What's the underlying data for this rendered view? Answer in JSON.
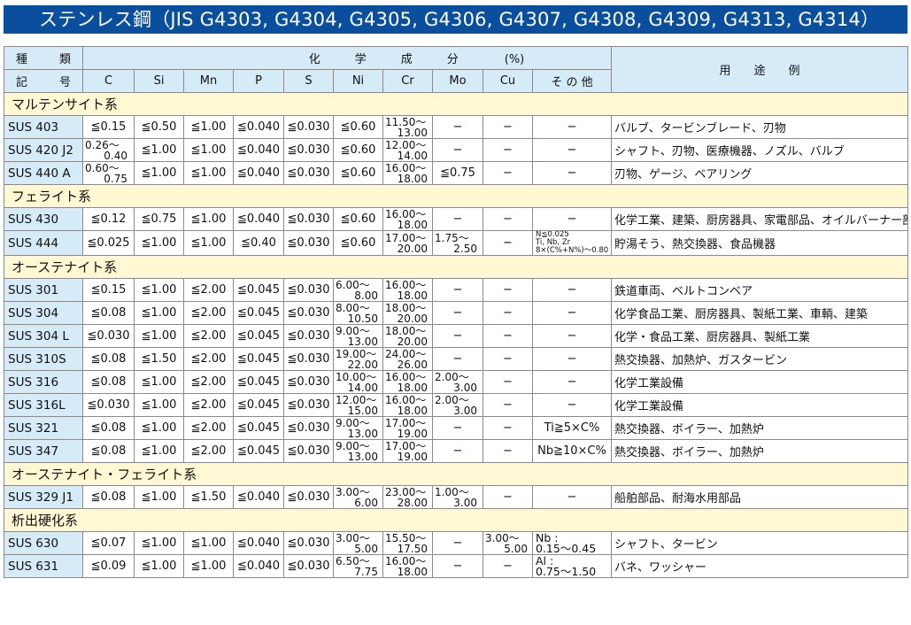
{
  "title": "ステンレス鋼（JIS G4303, G4304, G4305, G4306, G4307, G4308, G4309, G4313, G4314）",
  "header": {
    "type_label": "種類",
    "symbol_label": "記号",
    "chem_label": "化　　　学　　　成　　　分　　　　(%)",
    "use_label": "用　　途　　例",
    "elements": [
      "C",
      "Si",
      "Mn",
      "P",
      "S",
      "Ni",
      "Cr",
      "Mo",
      "Cu",
      "そ の 他"
    ]
  },
  "sections": [
    {
      "name": "マルテンサイト系",
      "rows": [
        {
          "grade": "SUS 403",
          "vals": [
            "≦0.15",
            "≦0.50",
            "≦1.00",
            "≦0.040",
            "≦0.030",
            "≦0.60",
            "11.50〜13.00",
            "−",
            "−",
            "−"
          ],
          "use": "バルブ、タービンブレード、刃物"
        },
        {
          "grade": "SUS 420 J2",
          "vals": [
            "0.26〜0.40",
            "≦1.00",
            "≦1.00",
            "≦0.040",
            "≦0.030",
            "≦0.60",
            "12.00〜14.00",
            "−",
            "−",
            "−"
          ],
          "use": "シャフト、刃物、医療機器、ノズル、バルブ"
        },
        {
          "grade": "SUS 440 A",
          "vals": [
            "0.60〜0.75",
            "≦1.00",
            "≦1.00",
            "≦0.040",
            "≦0.030",
            "≦0.60",
            "16.00〜18.00",
            "≦0.75",
            "−",
            "−"
          ],
          "use": "刃物、ゲージ、ベアリング"
        }
      ]
    },
    {
      "name": "フェライト系",
      "rows": [
        {
          "grade": "SUS 430",
          "vals": [
            "≦0.12",
            "≦0.75",
            "≦1.00",
            "≦0.040",
            "≦0.030",
            "≦0.60",
            "16.00〜18.00",
            "−",
            "−",
            "−"
          ],
          "use": "化学工業、建築、厨房器具、家電部品、オイルバーナー部品"
        },
        {
          "grade": "SUS 444",
          "vals": [
            "≦0.025",
            "≦1.00",
            "≦1.00",
            "≦0.40",
            "≦0.030",
            "≦0.60",
            "17.00〜20.00",
            "1.75〜2.50",
            "−",
            [
              "N≦0.025",
              "Ti, Nb, Zr",
              "8×(C%+N%)〜0.80"
            ]
          ],
          "use": "貯湯そう、熱交換器、食品機器"
        }
      ]
    },
    {
      "name": "オーステナイト系",
      "rows": [
        {
          "grade": "SUS 301",
          "vals": [
            "≦0.15",
            "≦1.00",
            "≦2.00",
            "≦0.045",
            "≦0.030",
            "6.00〜8.00",
            "16.00〜18.00",
            "−",
            "−",
            "−"
          ],
          "use": "鉄道車両、ベルトコンベア"
        },
        {
          "grade": "SUS 304",
          "vals": [
            "≦0.08",
            "≦1.00",
            "≦2.00",
            "≦0.045",
            "≦0.030",
            "8.00〜10.50",
            "18.00〜20.00",
            "−",
            "−",
            "−"
          ],
          "use": "化学食品工業、厨房器具、製紙工業、車輌、建築"
        },
        {
          "grade": "SUS 304 L",
          "vals": [
            "≦0.030",
            "≦1.00",
            "≦2.00",
            "≦0.045",
            "≦0.030",
            "9.00〜13.00",
            "18.00〜20.00",
            "−",
            "−",
            "−"
          ],
          "use": "化学・食品工業、厨房器具、製紙工業"
        },
        {
          "grade": "SUS 310S",
          "vals": [
            "≦0.08",
            "≦1.50",
            "≦2.00",
            "≦0.045",
            "≦0.030",
            "19.00〜22.00",
            "24.00〜26.00",
            "−",
            "−",
            "−"
          ],
          "use": "熱交換器、加熱炉、ガスタービン"
        },
        {
          "grade": "SUS 316",
          "vals": [
            "≦0.08",
            "≦1.00",
            "≦2.00",
            "≦0.045",
            "≦0.030",
            "10.00〜14.00",
            "16.00〜18.00",
            "2.00〜3.00",
            "−",
            "−"
          ],
          "use": "化学工業設備"
        },
        {
          "grade": "SUS 316L",
          "vals": [
            "≦0.030",
            "≦1.00",
            "≦2.00",
            "≦0.045",
            "≦0.030",
            "12.00〜15.00",
            "16.00〜18.00",
            "2.00〜3.00",
            "−",
            "−"
          ],
          "use": "化学工業設備"
        },
        {
          "grade": "SUS 321",
          "vals": [
            "≦0.08",
            "≦1.00",
            "≦2.00",
            "≦0.045",
            "≦0.030",
            "9.00〜13.00",
            "17.00〜19.00",
            "−",
            "−",
            "Ti≧5×C%"
          ],
          "use": "熱交換器、ボイラー、加熱炉"
        },
        {
          "grade": "SUS 347",
          "vals": [
            "≦0.08",
            "≦1.00",
            "≦2.00",
            "≦0.045",
            "≦0.030",
            "9.00〜13.00",
            "17.00〜19.00",
            "−",
            "−",
            "Nb≧10×C%"
          ],
          "use": "熱交換器、ボイラー、加熱炉"
        }
      ]
    },
    {
      "name": "オーステナイト・フェライト系",
      "rows": [
        {
          "grade": "SUS 329 J1",
          "vals": [
            "≦0.08",
            "≦1.00",
            "≦1.50",
            "≦0.040",
            "≦0.030",
            "3.00〜6.00",
            "23.00〜28.00",
            "1.00〜3.00",
            "−",
            "−"
          ],
          "use": "船舶部品、耐海水用部品"
        }
      ]
    },
    {
      "name": "析出硬化系",
      "rows": [
        {
          "grade": "SUS 630",
          "vals": [
            "≦0.07",
            "≦1.00",
            "≦1.00",
            "≦0.040",
            "≦0.030",
            "3.00〜5.00",
            "15.50〜17.50",
            "−",
            "3.00〜5.00",
            [
              "Nb :",
              "0.15〜0.45"
            ]
          ],
          "use": "シャフト、タービン"
        },
        {
          "grade": "SUS 631",
          "vals": [
            "≦0.09",
            "≦1.00",
            "≦1.00",
            "≦0.040",
            "≦0.030",
            "6.50〜7.75",
            "16.00〜18.00",
            "−",
            "−",
            [
              "Al :",
              "0.75〜1.50"
            ]
          ],
          "use": "バネ、ワッシャー"
        }
      ]
    }
  ]
}
